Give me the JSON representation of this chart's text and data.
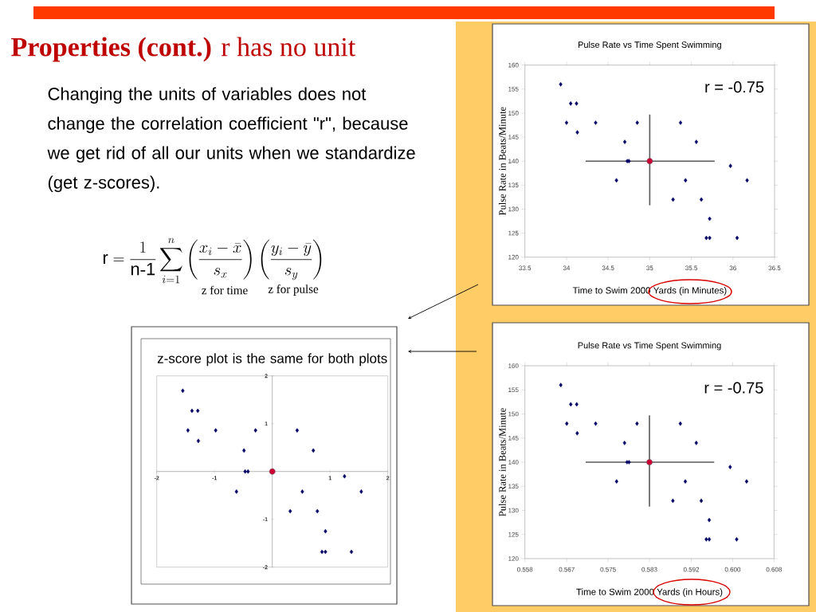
{
  "chart_data": [
    {
      "type": "other",
      "title": "**Properties (cont.)** r has no unit",
      "annotations": [
        "Changing the units of variables does not change the correlation coefficient \"r\", because we get rid of all our units when we standardize (get z-scores).",
        "\\mathrm{r} = \\frac{1}{\\mathrm{n\\text{-}1}}\\sum_{i=1}^{n}\\left(\\frac{x_i-\\bar{x}}{s_x}\\right)\\left(\\frac{y_i-\\bar{y}}{s_y}\\right)",
        "z for time",
        "z for pulse"
      ]
    },
    {
      "type": "scatter",
      "title": "Pulse Rate vs Time Spent Swimming",
      "xlabel": "Time to Swim 2000 Yards (in Minutes)",
      "ylabel": "Pulse Rate in Beats/Minute",
      "annotations": [
        "r = -0.75"
      ],
      "xlim": [
        33.5,
        36.5
      ],
      "ylim": [
        120,
        160
      ],
      "xticks": [
        33.5,
        34,
        34.5,
        35,
        35.5,
        36,
        36.5
      ],
      "yticks": [
        120,
        125,
        130,
        135,
        140,
        145,
        150,
        155,
        160
      ],
      "marker": "diamond",
      "series": [
        {
          "color": "#000066",
          "x": [
            33.93,
            34.05,
            34.12,
            34.0,
            34.13,
            34.35,
            34.85,
            34.7,
            34.73,
            34.75,
            34.6,
            35.37,
            35.56,
            35.43,
            35.28,
            35.62,
            35.72,
            35.68,
            35.72,
            35.97,
            36.17,
            36.05
          ],
          "values": [
            156,
            152,
            152,
            148,
            146,
            148,
            148,
            144,
            140,
            140,
            136,
            148,
            144,
            136,
            132,
            132,
            128,
            124,
            124,
            139,
            136,
            124
          ]
        },
        {
          "type": "line",
          "color": "#595959",
          "marker": "none",
          "x": [
            34.23,
            35.78
          ],
          "values": [
            140,
            140
          ]
        },
        {
          "type": "line",
          "color": "#595959",
          "marker": "none",
          "x": [
            35,
            35
          ],
          "values": [
            149.7,
            130.8
          ]
        },
        {
          "color": "#cc0033",
          "marker": "circle",
          "x": [
            35
          ],
          "values": [
            140
          ]
        }
      ]
    },
    {
      "type": "scatter",
      "title": "Pulse Rate vs Time Spent Swimming",
      "xlabel": "Time to Swim 2000 Yards (in Hours)",
      "ylabel": "Pulse Rate in Beats/Minute",
      "annotations": [
        "r = -0.75"
      ],
      "xlim": [
        0.5583,
        0.6083
      ],
      "ylim": [
        120,
        160
      ],
      "xticks": [
        {
          "value": 0.5583,
          "label": "0.558"
        },
        {
          "value": 0.5667,
          "label": "0.567"
        },
        {
          "value": 0.575,
          "label": "0.575"
        },
        {
          "value": 0.5833,
          "label": "0.583"
        },
        {
          "value": 0.5917,
          "label": "0.592"
        },
        {
          "value": 0.6,
          "label": "0.600"
        },
        {
          "value": 0.6083,
          "label": "0.608"
        }
      ],
      "yticks": [
        120,
        125,
        130,
        135,
        140,
        145,
        150,
        155,
        160
      ],
      "marker": "diamond",
      "series": [
        {
          "color": "#000066",
          "x": [
            0.5655,
            0.5675,
            0.5687,
            0.5667,
            0.5688,
            0.5725,
            0.5808,
            0.5783,
            0.5788,
            0.5792,
            0.5767,
            0.5895,
            0.5927,
            0.5905,
            0.588,
            0.5937,
            0.5953,
            0.5947,
            0.5953,
            0.5995,
            0.6028,
            0.6008
          ],
          "values": [
            156,
            152,
            152,
            148,
            146,
            148,
            148,
            144,
            140,
            140,
            136,
            148,
            144,
            136,
            132,
            132,
            128,
            124,
            124,
            139,
            136,
            124
          ]
        },
        {
          "type": "line",
          "color": "#595959",
          "marker": "none",
          "x": [
            0.5705,
            0.5963
          ],
          "values": [
            140,
            140
          ]
        },
        {
          "type": "line",
          "color": "#595959",
          "marker": "none",
          "x": [
            0.5833,
            0.5833
          ],
          "values": [
            149.7,
            130.8
          ]
        },
        {
          "color": "#cc0033",
          "marker": "circle",
          "x": [
            0.5833
          ],
          "values": [
            140
          ]
        }
      ]
    },
    {
      "type": "scatter",
      "title": "z-score plot is the same for both plots",
      "xlim": [
        -2,
        2
      ],
      "ylim": [
        -2,
        2
      ],
      "xticks": [
        -2,
        -1,
        1,
        2
      ],
      "yticks": [
        -2,
        -1,
        1,
        2
      ],
      "marker": "diamond",
      "series": [
        {
          "color": "#000066",
          "x": [
            -1.55,
            -1.39,
            -1.29,
            -1.46,
            -1.28,
            -0.98,
            -0.29,
            -0.49,
            -0.47,
            -0.42,
            -0.62,
            0.43,
            0.71,
            0.52,
            0.31,
            0.78,
            0.92,
            0.86,
            0.92,
            1.25,
            1.54,
            1.37
          ],
          "values": [
            1.69,
            1.27,
            1.27,
            0.86,
            0.64,
            0.86,
            0.86,
            0.44,
            0,
            0,
            -0.42,
            0.86,
            0.44,
            -0.42,
            -0.83,
            -0.83,
            -1.25,
            -1.68,
            -1.68,
            -0.1,
            -0.42,
            -1.68
          ]
        },
        {
          "color": "#cc0033",
          "marker": "circle",
          "x": [
            0
          ],
          "values": [
            0
          ]
        }
      ]
    }
  ]
}
